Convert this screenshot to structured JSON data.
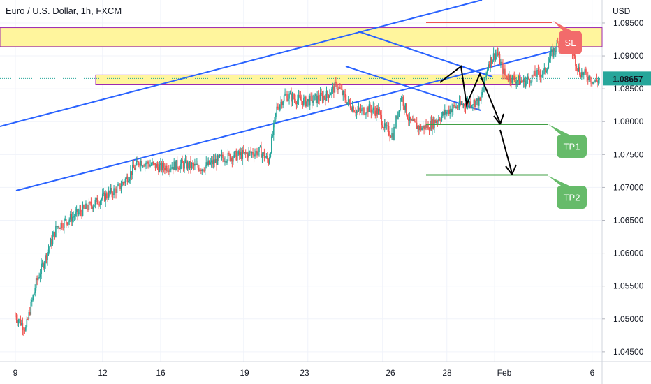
{
  "title": "Euro / U.S. Dollar, 1h, FXCM",
  "currency": "USD",
  "current_price": "1.08657",
  "colors": {
    "up": "#26a69a",
    "down": "#ef5350",
    "zone_fill": "#fff59d",
    "zone_border": "#9c27b0",
    "channel": "#2962ff",
    "sl": "#ef5350",
    "tp": "#43a047",
    "grid": "#f0f3fa"
  },
  "annotations": {
    "sl_label": "SL",
    "tp1_label": "TP1",
    "tp2_label": "TP2"
  },
  "chart_data": {
    "type": "candlestick",
    "title": "Euro / U.S. Dollar, 1h, FXCM",
    "x_ticks": [
      "9",
      "12",
      "16",
      "19",
      "23",
      "26",
      "28",
      "Feb",
      "6"
    ],
    "y_ticks": [
      "1.09500",
      "1.09000",
      "1.08500",
      "1.08000",
      "1.07500",
      "1.07000",
      "1.06500",
      "1.06000",
      "1.05500",
      "1.05000",
      "1.04500"
    ],
    "ylim": [
      1.0435,
      1.0985
    ],
    "grid": true,
    "current_price": 1.08657,
    "levels": {
      "sl": 1.0951,
      "tp1": 1.0796,
      "tp2": 1.0719
    },
    "zones": [
      {
        "name": "upper",
        "low": 1.0914,
        "high": 1.0943
      },
      {
        "name": "middle",
        "low": 1.0856,
        "high": 1.0871
      }
    ],
    "series": [
      {
        "name": "price",
        "anchors": [
          [
            0,
            1.0505
          ],
          [
            0.5,
            1.0485
          ],
          [
            1,
            1.0555
          ],
          [
            2,
            1.064
          ],
          [
            3,
            1.066
          ],
          [
            4,
            1.068
          ],
          [
            5,
            1.07
          ],
          [
            6,
            1.074
          ],
          [
            7,
            1.073
          ],
          [
            8,
            1.0735
          ],
          [
            9,
            1.073
          ],
          [
            10,
            1.0745
          ],
          [
            11,
            1.075
          ],
          [
            11.8,
            1.0755
          ],
          [
            12.2,
            1.074
          ],
          [
            12.6,
            1.082
          ],
          [
            13,
            1.084
          ],
          [
            14,
            1.083
          ],
          [
            15,
            1.084
          ],
          [
            15.5,
            1.0855
          ],
          [
            16,
            1.083
          ],
          [
            16.5,
            1.0815
          ],
          [
            17,
            1.082
          ],
          [
            17.5,
            1.0815
          ],
          [
            17.8,
            1.079
          ],
          [
            18.2,
            1.078
          ],
          [
            18.6,
            1.084
          ],
          [
            19,
            1.08
          ],
          [
            19.5,
            1.079
          ],
          [
            20,
            1.0795
          ],
          [
            21,
            1.082
          ],
          [
            22,
            1.083
          ],
          [
            22.4,
            1.083
          ],
          [
            22.8,
            1.089
          ],
          [
            23.2,
            1.0905
          ],
          [
            23.6,
            1.087
          ],
          [
            24,
            1.0865
          ],
          [
            24.5,
            1.086
          ],
          [
            25,
            1.087
          ],
          [
            25.5,
            1.0875
          ],
          [
            25.8,
            1.09
          ],
          [
            26.2,
            1.092
          ],
          [
            26.8,
            1.091
          ],
          [
            27.2,
            1.0875
          ],
          [
            27.6,
            1.087
          ],
          [
            27.9,
            1.086
          ],
          [
            28.2,
            1.0865
          ]
        ]
      }
    ]
  }
}
